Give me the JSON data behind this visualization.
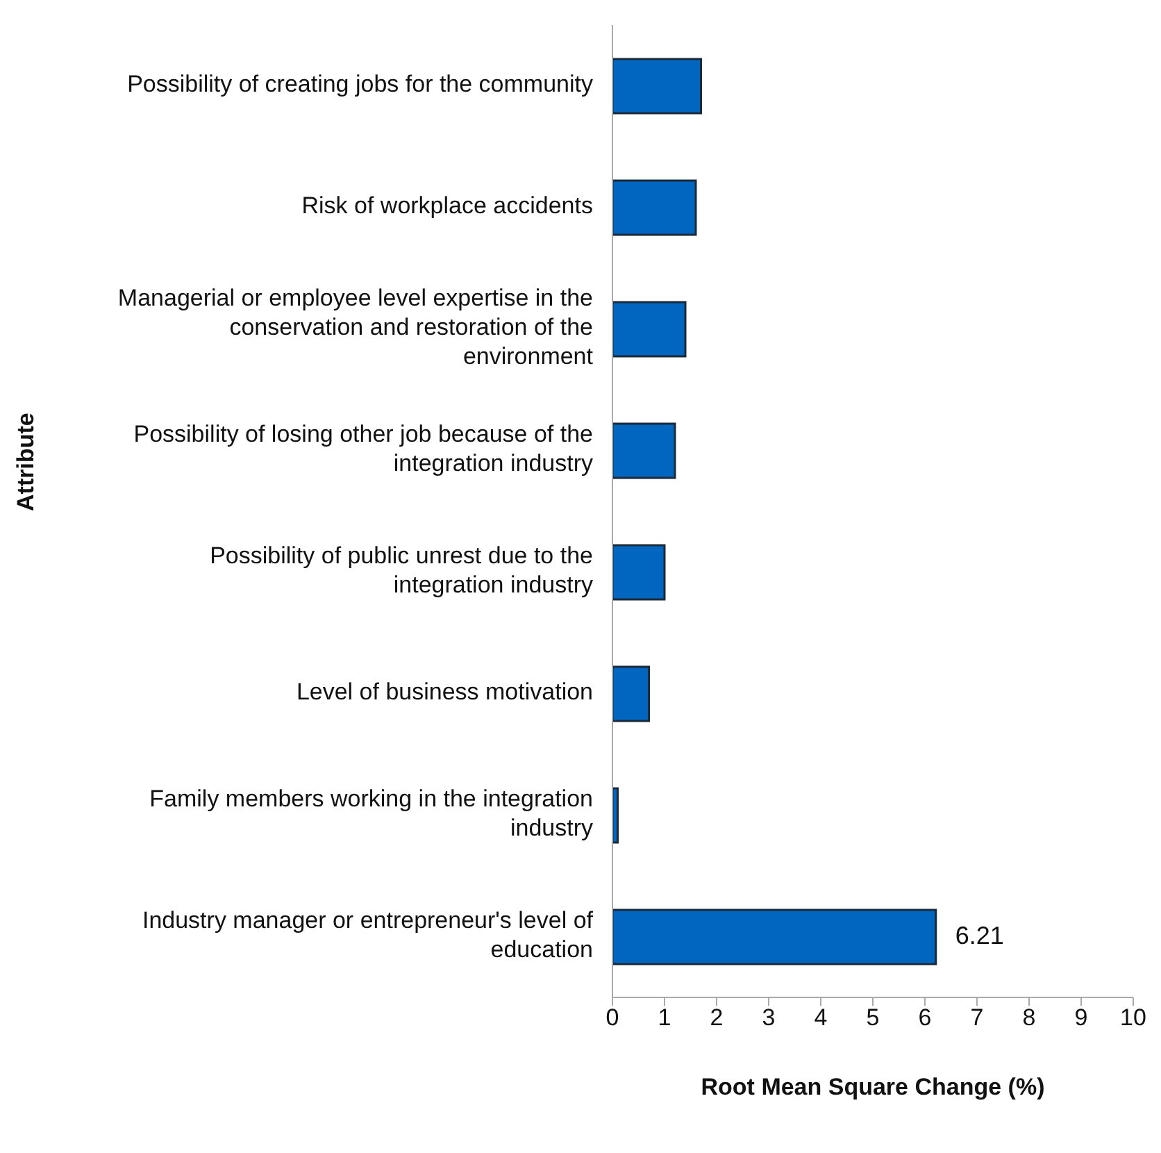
{
  "chart_data": {
    "type": "bar",
    "orientation": "horizontal",
    "xlabel": "Root Mean Square Change (%)",
    "ylabel": "Attribute",
    "categories": [
      "Possibility of creating jobs for the community",
      "Risk of workplace accidents",
      "Managerial or employee level expertise in the conservation and restoration of the environment",
      "Possibility of losing other job because of the integration industry",
      "Possibility of public unrest due to the integration industry",
      "Level of business motivation",
      "Family members working in the integration industry",
      "Industry manager or entrepreneur's level of education"
    ],
    "values": [
      1.7,
      1.6,
      1.4,
      1.2,
      1.0,
      0.7,
      0.1,
      6.21
    ],
    "value_labels": [
      null,
      null,
      null,
      null,
      null,
      null,
      null,
      "6.21"
    ],
    "color": "#0066c0",
    "xlim": [
      0,
      10
    ],
    "xticks": [
      0,
      1,
      2,
      3,
      4,
      5,
      6,
      7,
      8,
      9,
      10
    ],
    "grid": false,
    "legend": false
  }
}
